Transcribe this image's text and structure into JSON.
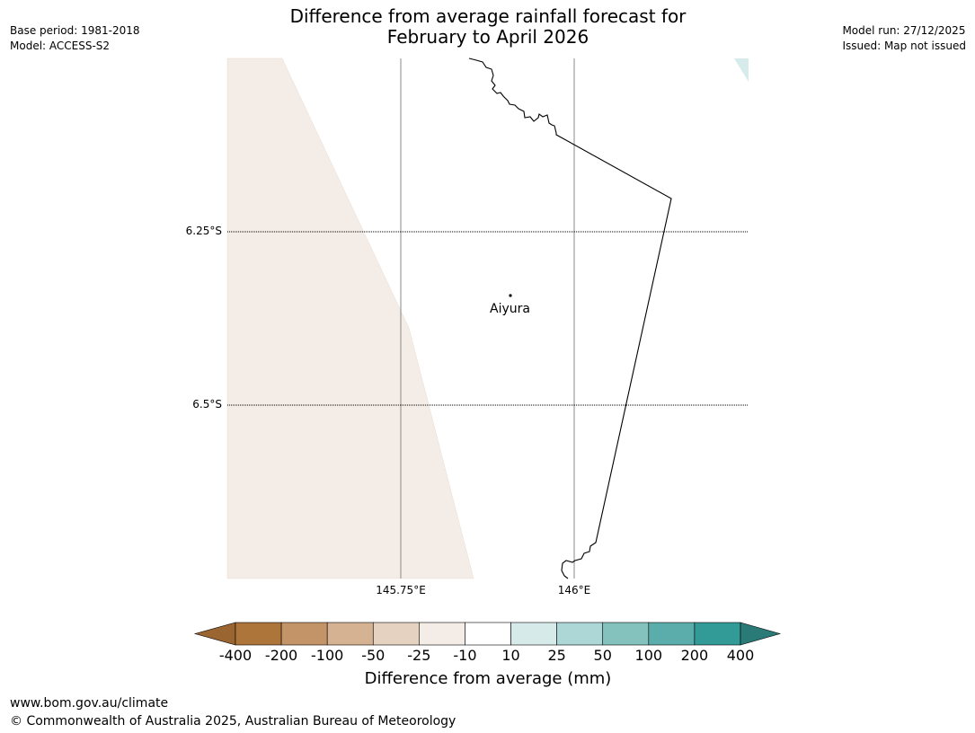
{
  "header": {
    "title_line1": "Difference from average rainfall forecast for",
    "title_line2": "February to April 2026",
    "base_period": "Base period: 1981-2018",
    "model": "Model: ACCESS-S2",
    "model_run": "Model run: 27/12/2025",
    "issued": "Issued: Map not issued"
  },
  "map": {
    "latitude_labels": [
      "6.25°S",
      "6.5°S"
    ],
    "longitude_labels": [
      "145.75°E",
      "146°E"
    ],
    "places": [
      {
        "name": "Aiyura"
      }
    ],
    "fill_colors": {
      "anomaly_minus_25_to_minus_10": "#f4ece6",
      "anomaly_10_to_25": "#d6ebeb"
    }
  },
  "legend": {
    "title": "Difference from average (mm)",
    "ticks": [
      "-400",
      "-200",
      "-100",
      "-50",
      "-25",
      "-10",
      "10",
      "25",
      "50",
      "100",
      "200",
      "400"
    ],
    "colors": [
      "#9b6532",
      "#ae753a",
      "#c39467",
      "#d4b292",
      "#e5d2c1",
      "#f4ece6",
      "#ffffff",
      "#d6eaea",
      "#add7d6",
      "#84c2be",
      "#5aadab",
      "#329b98",
      "#2a7a78"
    ]
  },
  "footer": {
    "url": "www.bom.gov.au/climate",
    "copyright": "© Commonwealth of Australia 2025, Australian Bureau of Meteorology"
  }
}
